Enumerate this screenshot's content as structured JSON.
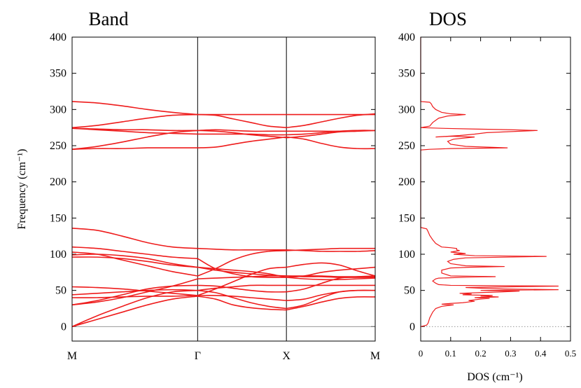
{
  "chart_data": [
    {
      "type": "line",
      "title": "Band",
      "xlabel": "",
      "ylabel": "Frequency (cm⁻¹)",
      "ylim": [
        -20,
        400
      ],
      "yticks": [
        0,
        50,
        100,
        150,
        200,
        250,
        300,
        350,
        400
      ],
      "high_symmetry_points": [
        "M",
        "Γ",
        "X",
        "M"
      ],
      "segment_lengths": [
        1.414,
        1.0,
        1.0
      ],
      "grid": false,
      "legend": "none",
      "color": "#ee1c1c",
      "series": [
        {
          "segments": [
            [
              0,
              10,
              20,
              30,
              38,
              42
            ],
            [
              42,
              38,
              30,
              26,
              24,
              23
            ],
            [
              23,
              28,
              34,
              39,
              41,
              41
            ]
          ]
        },
        {
          "segments": [
            [
              0,
              15,
              28,
              40,
              48,
              50
            ],
            [
              50,
              47,
              40,
              33,
              28,
              25
            ],
            [
              25,
              30,
              40,
              48,
              50,
              50
            ]
          ]
        },
        {
          "segments": [
            [
              40,
              40,
              41,
              42,
              42,
              43
            ],
            [
              43,
              43,
              42,
              40,
              38,
              36
            ],
            [
              36,
              38,
              44,
              48,
              50,
              50
            ]
          ]
        },
        {
          "segments": [
            [
              30,
              34,
              40,
              48,
              56,
              66
            ],
            [
              66,
              67,
              68,
              69,
              70,
              70
            ],
            [
              70,
              70,
              70,
              69,
              69,
              69
            ]
          ]
        },
        {
          "segments": [
            [
              30,
              36,
              44,
              52,
              56,
              57
            ],
            [
              57,
              56,
              53,
              50,
              48,
              48
            ],
            [
              48,
              52,
              60,
              67,
              69,
              70
            ]
          ]
        },
        {
          "segments": [
            [
              44,
              46,
              48,
              50,
              51,
              50
            ],
            [
              50,
              53,
              55,
              57,
              57,
              57
            ],
            [
              57,
              57,
              57,
              57,
              57,
              57
            ]
          ]
        },
        {
          "segments": [
            [
              55,
              54,
              52,
              49,
              46,
              43
            ],
            [
              43,
              52,
              62,
              72,
              80,
              82
            ],
            [
              82,
              86,
              88,
              85,
              77,
              70
            ]
          ]
        },
        {
          "segments": [
            [
              96,
              96,
              94,
              90,
              85,
              82
            ],
            [
              82,
              80,
              78,
              76,
              73,
              68
            ],
            [
              68,
              66,
              65,
              65,
              66,
              67
            ]
          ]
        },
        {
          "segments": [
            [
              99,
              100,
              98,
              94,
              87,
              82
            ],
            [
              82,
              78,
              75,
              73,
              71,
              70
            ],
            [
              70,
              69,
              69,
              68,
              68,
              68
            ]
          ]
        },
        {
          "segments": [
            [
              103,
              100,
              92,
              84,
              76,
              70
            ],
            [
              70,
              80,
              92,
              100,
              104,
              105
            ],
            [
              105,
              106,
              107,
              108,
              108,
              108
            ]
          ]
        },
        {
          "segments": [
            [
              110,
              108,
              104,
              100,
              96,
              94
            ],
            [
              94,
              80,
              73,
              69,
              68,
              68
            ],
            [
              68,
              70,
              75,
              78,
              80,
              82
            ]
          ]
        },
        {
          "segments": [
            [
              136,
              133,
              125,
              116,
              110,
              108
            ],
            [
              108,
              107,
              106,
              106,
              106,
              106
            ],
            [
              106,
              105,
              104,
              104,
              104,
              105
            ]
          ]
        },
        {
          "segments": [
            [
              245,
              246,
              246,
              247,
              247,
              247
            ],
            [
              247,
              248,
              252,
              256,
              259,
              262
            ],
            [
              262,
              259,
              253,
              248,
              246,
              246
            ]
          ]
        },
        {
          "segments": [
            [
              245,
              249,
              255,
              262,
              268,
              271
            ],
            [
              271,
              270,
              268,
              265,
              263,
              261
            ],
            [
              261,
              263,
              266,
              269,
              270,
              271
            ]
          ]
        },
        {
          "segments": [
            [
              274,
              272,
              270,
              268,
              267,
              266
            ],
            [
              266,
              266,
              266,
              266,
              265,
              265
            ],
            [
              265,
              266,
              268,
              270,
              271,
              271
            ]
          ]
        },
        {
          "segments": [
            [
              274,
              273,
              272,
              272,
              271,
              271
            ],
            [
              271,
              272,
              271,
              270,
              270,
              270
            ],
            [
              270,
              270,
              270,
              270,
              271,
              271
            ]
          ]
        },
        {
          "segments": [
            [
              275,
              278,
              283,
              288,
              292,
              293
            ],
            [
              293,
              293,
              293,
              293,
              293,
              293
            ],
            [
              293,
              293,
              293,
              293,
              293,
              293
            ]
          ]
        },
        {
          "segments": [
            [
              311,
              309,
              305,
              300,
              296,
              293
            ],
            [
              293,
              292,
              287,
              282,
              277,
              275
            ],
            [
              275,
              278,
              283,
              288,
              292,
              294
            ]
          ]
        }
      ]
    },
    {
      "type": "line",
      "title": "DOS",
      "xlabel": "DOS (cm⁻¹)",
      "ylabel": "",
      "xlim": [
        0,
        0.5
      ],
      "xticks": [
        "0",
        "0.1",
        "0.2",
        "0.3",
        "0.4",
        "0.5"
      ],
      "xtick_values": [
        0,
        0.1,
        0.2,
        0.3,
        0.4,
        0.5
      ],
      "ylim": [
        -20,
        400
      ],
      "yticks": [
        0,
        50,
        100,
        150,
        200,
        250,
        300,
        350,
        400
      ],
      "grid": false,
      "legend": "none",
      "color": "#ee1c1c",
      "points": [
        [
          0,
          0
        ],
        [
          0.01,
          1
        ],
        [
          0.02,
          2
        ],
        [
          0.025,
          5
        ],
        [
          0.03,
          12
        ],
        [
          0.04,
          20
        ],
        [
          0.05,
          25
        ],
        [
          0.07,
          28
        ],
        [
          0.11,
          30
        ],
        [
          0.07,
          31
        ],
        [
          0.1,
          32
        ],
        [
          0.14,
          33
        ],
        [
          0.16,
          34
        ],
        [
          0.18,
          35
        ],
        [
          0.16,
          36
        ],
        [
          0.2,
          38
        ],
        [
          0.23,
          39
        ],
        [
          0.18,
          40
        ],
        [
          0.26,
          41
        ],
        [
          0.2,
          42
        ],
        [
          0.24,
          43
        ],
        [
          0.14,
          44
        ],
        [
          0.17,
          45
        ],
        [
          0.13,
          46
        ],
        [
          0.2,
          47
        ],
        [
          0.27,
          48
        ],
        [
          0.33,
          49
        ],
        [
          0.2,
          50
        ],
        [
          0.46,
          51
        ],
        [
          0.28,
          52
        ],
        [
          0.2,
          53
        ],
        [
          0.15,
          54
        ],
        [
          0.46,
          56
        ],
        [
          0.1,
          57
        ],
        [
          0.06,
          58
        ],
        [
          0.05,
          60
        ],
        [
          0.04,
          63
        ],
        [
          0.05,
          66
        ],
        [
          0.06,
          67
        ],
        [
          0.14,
          68
        ],
        [
          0.25,
          69
        ],
        [
          0.1,
          70
        ],
        [
          0.07,
          74
        ],
        [
          0.07,
          78
        ],
        [
          0.1,
          81
        ],
        [
          0.16,
          82
        ],
        [
          0.28,
          83
        ],
        [
          0.15,
          84
        ],
        [
          0.1,
          87
        ],
        [
          0.09,
          90
        ],
        [
          0.11,
          93
        ],
        [
          0.15,
          95
        ],
        [
          0.42,
          97
        ],
        [
          0.18,
          98
        ],
        [
          0.11,
          100
        ],
        [
          0.15,
          101
        ],
        [
          0.1,
          103
        ],
        [
          0.13,
          105
        ],
        [
          0.12,
          106
        ],
        [
          0.12,
          108
        ],
        [
          0.1,
          109
        ],
        [
          0.07,
          110
        ],
        [
          0.05,
          115
        ],
        [
          0.04,
          120
        ],
        [
          0.03,
          126
        ],
        [
          0.025,
          131
        ],
        [
          0.02,
          135
        ],
        [
          0.0,
          137
        ],
        [
          0.0,
          244
        ],
        [
          0.03,
          245
        ],
        [
          0.1,
          246
        ],
        [
          0.29,
          247
        ],
        [
          0.15,
          249
        ],
        [
          0.1,
          252
        ],
        [
          0.09,
          256
        ],
        [
          0.11,
          259
        ],
        [
          0.18,
          262
        ],
        [
          0.1,
          263
        ],
        [
          0.05,
          262
        ],
        [
          0.13,
          264
        ],
        [
          0.18,
          266
        ],
        [
          0.22,
          268
        ],
        [
          0.39,
          271
        ],
        [
          0.3,
          272
        ],
        [
          0.18,
          273
        ],
        [
          0.07,
          274
        ],
        [
          0.0,
          275
        ],
        [
          0.03,
          277
        ],
        [
          0.04,
          282
        ],
        [
          0.06,
          288
        ],
        [
          0.09,
          291
        ],
        [
          0.15,
          293
        ],
        [
          0.1,
          294
        ],
        [
          0.07,
          296
        ],
        [
          0.05,
          300
        ],
        [
          0.04,
          304
        ],
        [
          0.035,
          308
        ],
        [
          0.03,
          310
        ],
        [
          0.0,
          311
        ],
        [
          0.0,
          400
        ]
      ]
    }
  ]
}
